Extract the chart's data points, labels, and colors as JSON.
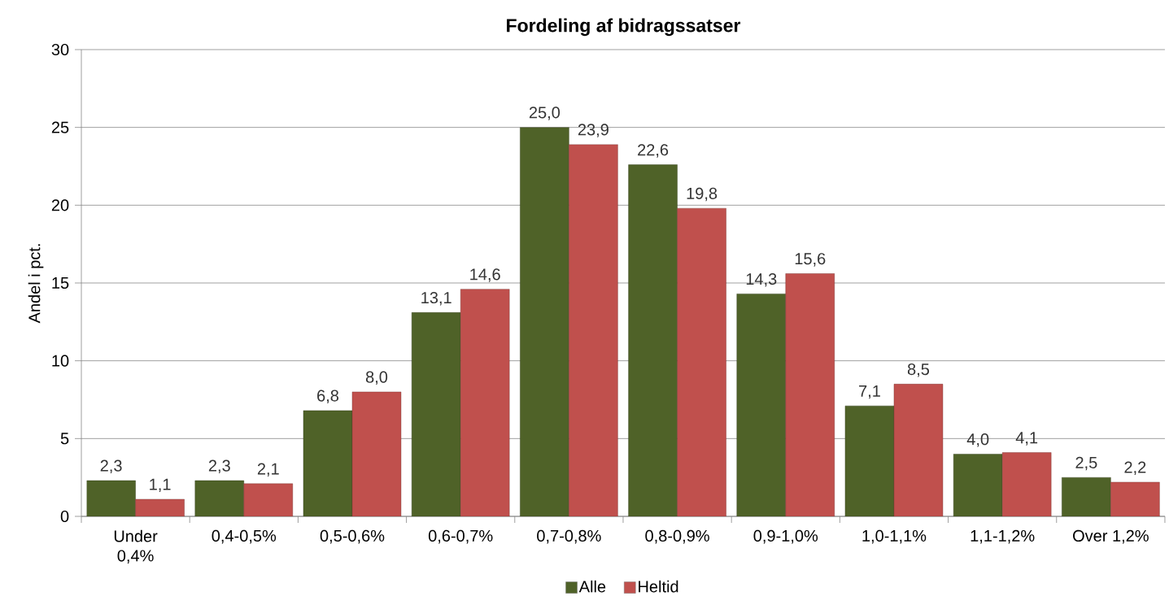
{
  "chart_data": {
    "type": "bar",
    "title": "Fordeling af bidragssatser",
    "ylabel": "Andel i pct.",
    "categories": [
      "Under 0,4%",
      "0,4-0,5%",
      "0,5-0,6%",
      "0,6-0,7%",
      "0,7-0,8%",
      "0,8-0,9%",
      "0,9-1,0%",
      "1,0-1,1%",
      "1,1-1,2%",
      "Over 1,2%"
    ],
    "series": [
      {
        "name": "Alle",
        "color": "#4f6228",
        "values": [
          2.3,
          2.3,
          6.8,
          13.1,
          25.0,
          22.6,
          14.3,
          7.1,
          4.0,
          2.5
        ],
        "value_labels": [
          "2,3",
          "2,3",
          "6,8",
          "13,1",
          "25,0",
          "22,6",
          "14,3",
          "7,1",
          "4,0",
          "2,5"
        ]
      },
      {
        "name": "Heltid",
        "color": "#c0504d",
        "values": [
          1.1,
          2.1,
          8.0,
          14.6,
          23.9,
          19.8,
          15.6,
          8.5,
          4.1,
          2.2
        ],
        "value_labels": [
          "1,1",
          "2,1",
          "8,0",
          "14,6",
          "23,9",
          "19,8",
          "15,6",
          "8,5",
          "4,1",
          "2,2"
        ]
      }
    ],
    "ylim": [
      0,
      30
    ],
    "yticks": [
      0,
      5,
      10,
      15,
      20,
      25,
      30
    ],
    "grid": "y",
    "legend": "bottom"
  }
}
